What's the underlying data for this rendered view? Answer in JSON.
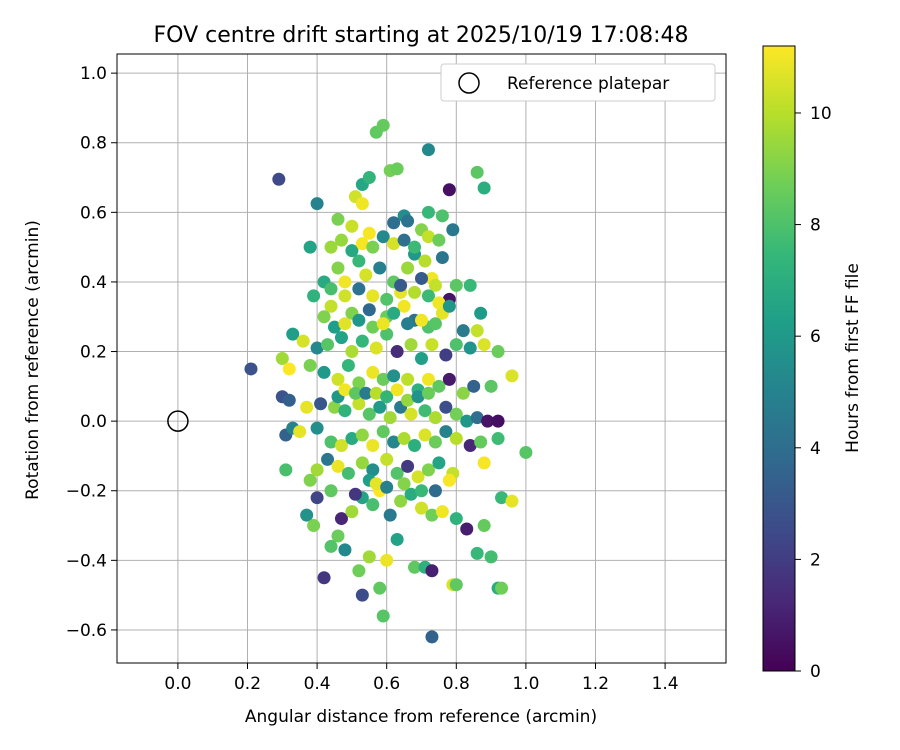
{
  "chart_data": {
    "type": "scatter",
    "title": "FOV centre drift starting at 2025/10/19 17:08:48",
    "xlabel": "Angular distance from reference (arcmin)",
    "ylabel": "Rotation from reference (arcmin)",
    "xlim": [
      -0.175,
      1.575
    ],
    "ylim": [
      -0.695,
      1.055
    ],
    "xticks": [
      0.0,
      0.2,
      0.4,
      0.6,
      0.8,
      1.0,
      1.2,
      1.4
    ],
    "xtick_labels": [
      "0.0",
      "0.2",
      "0.4",
      "0.6",
      "0.8",
      "1.0",
      "1.2",
      "1.4"
    ],
    "yticks": [
      -0.6,
      -0.4,
      -0.2,
      0.0,
      0.2,
      0.4,
      0.6,
      0.8,
      1.0
    ],
    "ytick_labels": [
      "−0.6",
      "−0.4",
      "−0.2",
      "0.0",
      "0.2",
      "0.4",
      "0.6",
      "0.8",
      "1.0"
    ],
    "grid": true,
    "colormap": "viridis",
    "colorbar": {
      "label": "Hours from first FF file",
      "min": 0,
      "max": 11.2,
      "ticks": [
        0,
        2,
        4,
        6,
        8,
        10
      ],
      "tick_labels": [
        "0",
        "2",
        "4",
        "6",
        "8",
        "10"
      ]
    },
    "legend": {
      "position": "top-right",
      "label": "Reference platepar"
    },
    "reference": {
      "x": 0.0,
      "y": 0.0
    },
    "series": [
      {
        "name": "FOV centre",
        "points": [
          [
            0.29,
            0.695,
            2.5
          ],
          [
            0.4,
            0.625,
            5.0
          ],
          [
            0.57,
            0.83,
            8.4
          ],
          [
            0.59,
            0.85,
            8.5
          ],
          [
            0.61,
            0.72,
            8.8
          ],
          [
            0.63,
            0.725,
            8.6
          ],
          [
            0.72,
            0.78,
            5.3
          ],
          [
            0.78,
            0.665,
            0.5
          ],
          [
            0.86,
            0.715,
            8.3
          ],
          [
            0.88,
            0.67,
            7.0
          ],
          [
            0.53,
            0.68,
            6.6
          ],
          [
            0.55,
            0.7,
            7.3
          ],
          [
            0.51,
            0.645,
            10.4
          ],
          [
            0.53,
            0.625,
            11.0
          ],
          [
            0.65,
            0.59,
            5.5
          ],
          [
            0.72,
            0.6,
            7.5
          ],
          [
            0.66,
            0.575,
            4.3
          ],
          [
            0.7,
            0.55,
            9.1
          ],
          [
            0.76,
            0.59,
            8.0
          ],
          [
            0.79,
            0.55,
            4.5
          ],
          [
            0.46,
            0.58,
            8.9
          ],
          [
            0.5,
            0.56,
            10.3
          ],
          [
            0.55,
            0.54,
            11.1
          ],
          [
            0.38,
            0.5,
            6.5
          ],
          [
            0.44,
            0.5,
            9.5
          ],
          [
            0.62,
            0.57,
            4.0
          ],
          [
            0.68,
            0.48,
            6.0
          ],
          [
            0.71,
            0.46,
            10.0
          ],
          [
            0.73,
            0.41,
            11.0
          ],
          [
            0.76,
            0.47,
            4.4
          ],
          [
            0.46,
            0.44,
            9.1
          ],
          [
            0.48,
            0.4,
            11.0
          ],
          [
            0.52,
            0.46,
            7.5
          ],
          [
            0.54,
            0.42,
            10.5
          ],
          [
            0.58,
            0.44,
            4.9
          ],
          [
            0.62,
            0.4,
            8.4
          ],
          [
            0.64,
            0.37,
            10.8
          ],
          [
            0.66,
            0.44,
            9.5
          ],
          [
            0.7,
            0.41,
            3.2
          ],
          [
            0.74,
            0.39,
            10.2
          ],
          [
            0.78,
            0.35,
            0.6
          ],
          [
            0.8,
            0.39,
            8.3
          ],
          [
            0.84,
            0.39,
            7.5
          ],
          [
            0.87,
            0.31,
            6.1
          ],
          [
            0.42,
            0.4,
            6.8
          ],
          [
            0.39,
            0.36,
            7.2
          ],
          [
            0.44,
            0.33,
            10.2
          ],
          [
            0.5,
            0.31,
            9.0
          ],
          [
            0.55,
            0.32,
            3.8
          ],
          [
            0.6,
            0.3,
            8.6
          ],
          [
            0.65,
            0.33,
            11.0
          ],
          [
            0.68,
            0.29,
            4.3
          ],
          [
            0.72,
            0.27,
            8.0
          ],
          [
            0.76,
            0.31,
            10.8
          ],
          [
            0.82,
            0.26,
            4.7
          ],
          [
            0.86,
            0.26,
            10.2
          ],
          [
            0.33,
            0.25,
            6.2
          ],
          [
            0.36,
            0.23,
            10.5
          ],
          [
            0.4,
            0.21,
            5.3
          ],
          [
            0.43,
            0.22,
            8.2
          ],
          [
            0.47,
            0.24,
            6.4
          ],
          [
            0.5,
            0.2,
            9.8
          ],
          [
            0.53,
            0.23,
            7.4
          ],
          [
            0.57,
            0.21,
            10.6
          ],
          [
            0.6,
            0.25,
            8.0
          ],
          [
            0.63,
            0.2,
            1.4
          ],
          [
            0.67,
            0.22,
            9.6
          ],
          [
            0.7,
            0.18,
            6.3
          ],
          [
            0.73,
            0.22,
            10.3
          ],
          [
            0.77,
            0.19,
            2.1
          ],
          [
            0.8,
            0.22,
            8.0
          ],
          [
            0.84,
            0.21,
            5.8
          ],
          [
            0.88,
            0.22,
            10.6
          ],
          [
            0.92,
            0.2,
            8.6
          ],
          [
            0.21,
            0.15,
            2.8
          ],
          [
            0.3,
            0.18,
            9.6
          ],
          [
            0.32,
            0.15,
            11.2
          ],
          [
            0.38,
            0.16,
            8.9
          ],
          [
            0.42,
            0.14,
            6.0
          ],
          [
            0.46,
            0.12,
            10.4
          ],
          [
            0.49,
            0.16,
            7.4
          ],
          [
            0.52,
            0.11,
            9.0
          ],
          [
            0.56,
            0.14,
            10.9
          ],
          [
            0.59,
            0.12,
            8.6
          ],
          [
            0.62,
            0.13,
            5.6
          ],
          [
            0.66,
            0.12,
            10.1
          ],
          [
            0.69,
            0.09,
            7.1
          ],
          [
            0.72,
            0.12,
            11.0
          ],
          [
            0.75,
            0.1,
            8.4
          ],
          [
            0.78,
            0.12,
            0.8
          ],
          [
            0.82,
            0.08,
            9.2
          ],
          [
            0.85,
            0.1,
            3.5
          ],
          [
            0.9,
            0.1,
            8.3
          ],
          [
            0.96,
            0.13,
            10.6
          ],
          [
            0.3,
            0.07,
            2.8
          ],
          [
            0.32,
            0.06,
            3.4
          ],
          [
            0.37,
            0.04,
            10.8
          ],
          [
            0.41,
            0.05,
            3.0
          ],
          [
            0.45,
            0.04,
            9.2
          ],
          [
            0.48,
            0.03,
            7.2
          ],
          [
            0.52,
            0.05,
            10.2
          ],
          [
            0.55,
            0.02,
            8.2
          ],
          [
            0.58,
            0.04,
            6.1
          ],
          [
            0.61,
            0.01,
            9.6
          ],
          [
            0.64,
            0.04,
            4.6
          ],
          [
            0.67,
            0.02,
            10.5
          ],
          [
            0.71,
            0.03,
            7.7
          ],
          [
            0.74,
            0.01,
            9.8
          ],
          [
            0.77,
            0.04,
            2.7
          ],
          [
            0.8,
            0.02,
            8.8
          ],
          [
            0.83,
            0.0,
            5.9
          ],
          [
            0.86,
            0.01,
            4.0
          ],
          [
            0.89,
            0.0,
            0.6
          ],
          [
            0.92,
            0.0,
            0.4
          ],
          [
            0.31,
            -0.04,
            3.5
          ],
          [
            0.33,
            -0.02,
            5.0
          ],
          [
            0.35,
            -0.03,
            10.8
          ],
          [
            0.4,
            -0.02,
            5.5
          ],
          [
            0.44,
            -0.06,
            8.0
          ],
          [
            0.47,
            -0.07,
            10.4
          ],
          [
            0.5,
            -0.05,
            6.8
          ],
          [
            0.53,
            -0.04,
            9.3
          ],
          [
            0.56,
            -0.07,
            10.9
          ],
          [
            0.59,
            -0.03,
            8.4
          ],
          [
            0.62,
            -0.06,
            5.2
          ],
          [
            0.65,
            -0.05,
            9.8
          ],
          [
            0.68,
            -0.07,
            7.0
          ],
          [
            0.71,
            -0.04,
            10.6
          ],
          [
            0.74,
            -0.06,
            8.6
          ],
          [
            0.77,
            -0.03,
            5.0
          ],
          [
            0.8,
            -0.05,
            10.0
          ],
          [
            0.84,
            -0.07,
            1.2
          ],
          [
            0.87,
            -0.06,
            8.5
          ],
          [
            0.92,
            -0.05,
            7.7
          ],
          [
            1.0,
            -0.09,
            8.2
          ],
          [
            0.31,
            -0.14,
            7.9
          ],
          [
            0.38,
            -0.17,
            9.0
          ],
          [
            0.4,
            -0.14,
            9.6
          ],
          [
            0.43,
            -0.11,
            4.4
          ],
          [
            0.46,
            -0.13,
            10.9
          ],
          [
            0.49,
            -0.15,
            7.8
          ],
          [
            0.53,
            -0.12,
            9.4
          ],
          [
            0.56,
            -0.14,
            5.5
          ],
          [
            0.6,
            -0.11,
            10.2
          ],
          [
            0.63,
            -0.15,
            8.1
          ],
          [
            0.66,
            -0.13,
            1.9
          ],
          [
            0.69,
            -0.16,
            10.5
          ],
          [
            0.72,
            -0.14,
            9.0
          ],
          [
            0.75,
            -0.12,
            6.5
          ],
          [
            0.79,
            -0.15,
            10.2
          ],
          [
            0.88,
            -0.12,
            11.1
          ],
          [
            0.37,
            -0.27,
            5.7
          ],
          [
            0.4,
            -0.22,
            2.3
          ],
          [
            0.44,
            -0.2,
            8.4
          ],
          [
            0.47,
            -0.28,
            1.2
          ],
          [
            0.5,
            -0.26,
            9.6
          ],
          [
            0.53,
            -0.22,
            6.5
          ],
          [
            0.56,
            -0.24,
            7.9
          ],
          [
            0.58,
            -0.2,
            11.2
          ],
          [
            0.61,
            -0.27,
            4.6
          ],
          [
            0.64,
            -0.23,
            9.3
          ],
          [
            0.67,
            -0.21,
            6.9
          ],
          [
            0.7,
            -0.25,
            10.4
          ],
          [
            0.73,
            -0.27,
            8.7
          ],
          [
            0.76,
            -0.26,
            11.0
          ],
          [
            0.8,
            -0.28,
            7.2
          ],
          [
            0.83,
            -0.31,
            0.9
          ],
          [
            0.88,
            -0.3,
            8.5
          ],
          [
            0.93,
            -0.22,
            7.5
          ],
          [
            0.96,
            -0.23,
            10.8
          ],
          [
            0.42,
            -0.45,
            1.8
          ],
          [
            0.46,
            -0.33,
            8.6
          ],
          [
            0.48,
            -0.37,
            5.3
          ],
          [
            0.52,
            -0.43,
            8.7
          ],
          [
            0.55,
            -0.39,
            9.6
          ],
          [
            0.58,
            -0.48,
            8.4
          ],
          [
            0.6,
            -0.4,
            10.9
          ],
          [
            0.63,
            -0.34,
            6.4
          ],
          [
            0.68,
            -0.42,
            8.4
          ],
          [
            0.71,
            -0.42,
            7.1
          ],
          [
            0.73,
            -0.43,
            1.0
          ],
          [
            0.79,
            -0.47,
            10.6
          ],
          [
            0.8,
            -0.47,
            8.4
          ],
          [
            0.86,
            -0.38,
            7.5
          ],
          [
            0.9,
            -0.39,
            7.8
          ],
          [
            0.53,
            -0.5,
            2.6
          ],
          [
            0.59,
            -0.56,
            8.2
          ],
          [
            0.73,
            -0.62,
            3.5
          ],
          [
            0.92,
            -0.48,
            6.9
          ],
          [
            0.93,
            -0.48,
            8.7
          ],
          [
            0.39,
            -0.3,
            8.9
          ],
          [
            0.44,
            -0.36,
            8.1
          ],
          [
            0.51,
            -0.21,
            1.8
          ],
          [
            0.55,
            -0.17,
            6.2
          ],
          [
            0.57,
            -0.18,
            10.8
          ],
          [
            0.6,
            -0.19,
            4.9
          ],
          [
            0.65,
            -0.18,
            9.1
          ],
          [
            0.7,
            -0.2,
            7.5
          ],
          [
            0.74,
            -0.2,
            3.9
          ],
          [
            0.78,
            -0.17,
            11.1
          ],
          [
            0.46,
            0.07,
            5.9
          ],
          [
            0.48,
            0.09,
            11.0
          ],
          [
            0.51,
            0.08,
            8.3
          ],
          [
            0.54,
            0.08,
            4.7
          ],
          [
            0.57,
            0.08,
            10.0
          ],
          [
            0.6,
            0.07,
            7.3
          ],
          [
            0.63,
            0.09,
            11.0
          ],
          [
            0.66,
            0.06,
            9.4
          ],
          [
            0.69,
            0.07,
            5.7
          ],
          [
            0.72,
            0.08,
            8.6
          ],
          [
            0.42,
            0.3,
            9.0
          ],
          [
            0.45,
            0.27,
            6.2
          ],
          [
            0.48,
            0.28,
            10.7
          ],
          [
            0.52,
            0.29,
            5.9
          ],
          [
            0.56,
            0.27,
            8.7
          ],
          [
            0.59,
            0.28,
            10.9
          ],
          [
            0.62,
            0.31,
            6.8
          ],
          [
            0.66,
            0.28,
            4.8
          ],
          [
            0.7,
            0.29,
            11.0
          ],
          [
            0.74,
            0.28,
            8.2
          ],
          [
            0.44,
            0.38,
            7.9
          ],
          [
            0.48,
            0.36,
            10.4
          ],
          [
            0.52,
            0.38,
            4.2
          ],
          [
            0.56,
            0.36,
            10.8
          ],
          [
            0.6,
            0.35,
            8.1
          ],
          [
            0.64,
            0.39,
            3.2
          ],
          [
            0.68,
            0.37,
            9.9
          ],
          [
            0.72,
            0.36,
            7.6
          ],
          [
            0.75,
            0.34,
            11.0
          ],
          [
            0.78,
            0.33,
            5.9
          ],
          [
            0.47,
            0.52,
            9.4
          ],
          [
            0.5,
            0.49,
            6.7
          ],
          [
            0.53,
            0.51,
            11.1
          ],
          [
            0.56,
            0.5,
            8.9
          ],
          [
            0.59,
            0.53,
            5.3
          ],
          [
            0.62,
            0.51,
            10.5
          ],
          [
            0.65,
            0.52,
            4.1
          ],
          [
            0.68,
            0.5,
            7.6
          ],
          [
            0.72,
            0.53,
            10.2
          ],
          [
            0.75,
            0.52,
            8.6
          ]
        ]
      }
    ]
  }
}
